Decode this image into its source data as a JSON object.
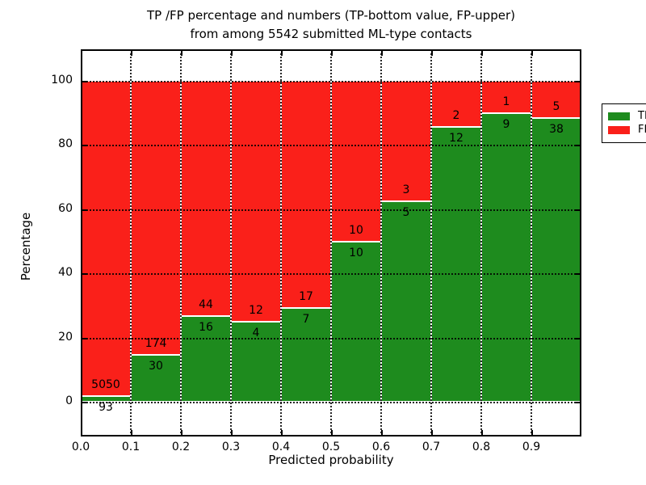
{
  "chart_data": {
    "type": "bar",
    "stacked": true,
    "normalized_to_percent": true,
    "title_line1": "TP /FP percentage and numbers (TP-bottom value, FP-upper)",
    "title_line2": "from among 5542 submitted ML-type contacts",
    "xlabel": "Predicted probability",
    "ylabel": "Percentage",
    "x_tick_labels": [
      "0.0",
      "0.1",
      "0.2",
      "0.3",
      "0.4",
      "0.5",
      "0.6",
      "0.7",
      "0.8",
      "0.9"
    ],
    "y_tick_labels": [
      "0",
      "20",
      "40",
      "60",
      "80",
      "100"
    ],
    "y_tick_values": [
      0,
      20,
      40,
      60,
      80,
      100
    ],
    "ylim": [
      -11,
      110
    ],
    "x_bins": {
      "start": 0.0,
      "end": 1.0,
      "width": 0.1
    },
    "grid": "dotted",
    "series": [
      {
        "name": "TP",
        "color": "#1e8b1e",
        "counts": [
          93,
          30,
          16,
          4,
          7,
          10,
          5,
          12,
          9,
          38
        ]
      },
      {
        "name": "FP",
        "color": "#fa201a",
        "counts": [
          5050,
          174,
          44,
          12,
          17,
          10,
          3,
          2,
          1,
          5
        ]
      }
    ],
    "tp_percent_of_bin": [
      1.81,
      14.71,
      26.67,
      25.0,
      29.17,
      50.0,
      62.5,
      85.71,
      90.0,
      88.37
    ],
    "legend": {
      "location": "upper right",
      "entries": [
        "TP",
        "FP"
      ]
    }
  },
  "colors": {
    "tp_green": "#1e8b1e",
    "fp_red": "#fa201a",
    "axis": "#000000",
    "background": "#ffffff"
  }
}
